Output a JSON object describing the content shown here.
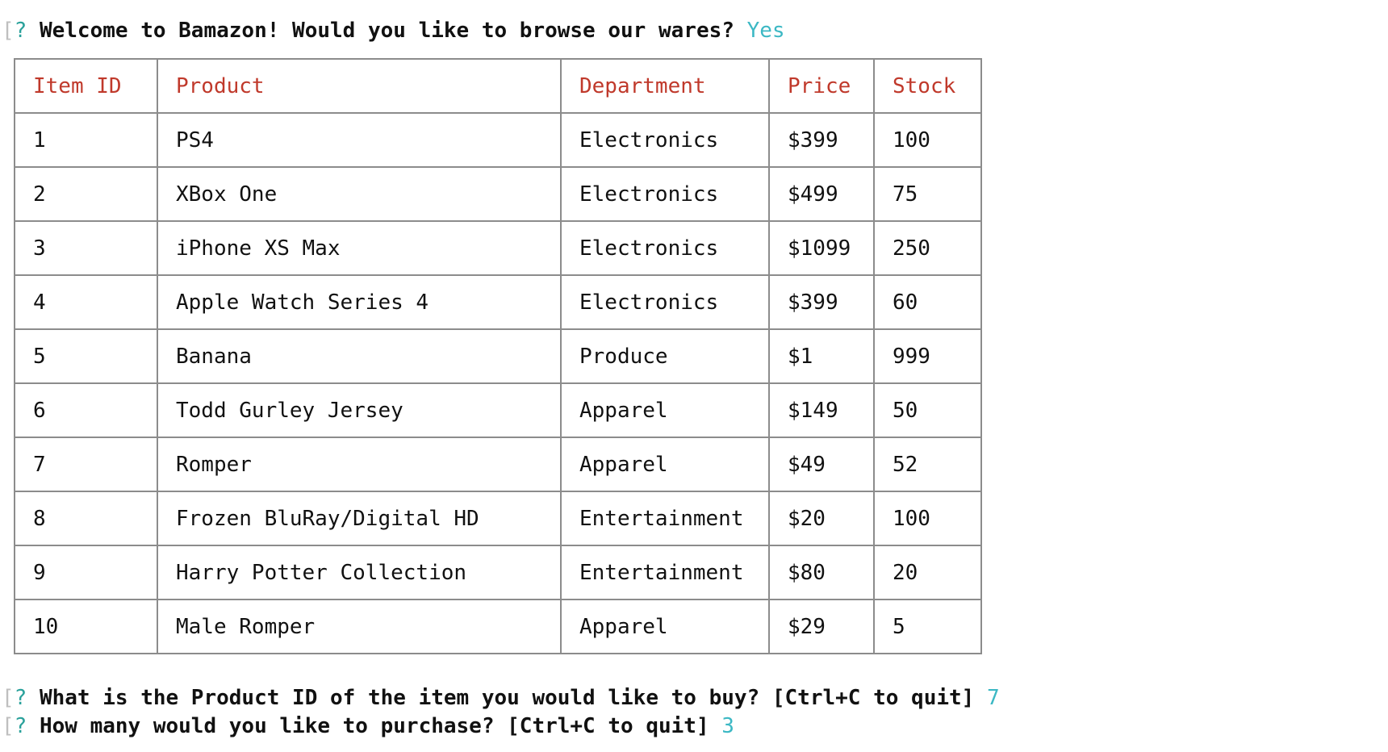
{
  "prompts": {
    "welcome": {
      "bracket": "[",
      "mark": "?",
      "question": "Welcome to Bamazon! Would you like to browse our wares?",
      "answer": "Yes"
    },
    "product_id": {
      "bracket": "[",
      "mark": "?",
      "question": "What is the Product ID of the item you would like to buy? [Ctrl+C to quit]",
      "answer": "7"
    },
    "quantity": {
      "bracket": "[",
      "mark": "?",
      "question": "How many would you like to purchase? [Ctrl+C to quit]",
      "answer": "3"
    }
  },
  "table": {
    "headers": [
      "Item ID",
      "Product",
      "Department",
      "Price",
      "Stock"
    ],
    "rows": [
      [
        "1",
        "PS4",
        "Electronics",
        "$399",
        "100"
      ],
      [
        "2",
        "XBox One",
        "Electronics",
        "$499",
        "75"
      ],
      [
        "3",
        "iPhone XS Max",
        "Electronics",
        "$1099",
        "250"
      ],
      [
        "4",
        "Apple Watch Series 4",
        "Electronics",
        "$399",
        "60"
      ],
      [
        "5",
        "Banana",
        "Produce",
        "$1",
        "999"
      ],
      [
        "6",
        "Todd Gurley Jersey",
        "Apparel",
        "$149",
        "50"
      ],
      [
        "7",
        "Romper",
        "Apparel",
        "$49",
        "52"
      ],
      [
        "8",
        "Frozen BluRay/Digital HD",
        "Entertainment",
        "$20",
        "100"
      ],
      [
        "9",
        "Harry Potter Collection",
        "Entertainment",
        "$80",
        "20"
      ],
      [
        "10",
        "Male Romper",
        "Apparel",
        "$29",
        "5"
      ]
    ]
  },
  "colors": {
    "header_text": "#c0392b",
    "answer_text": "#3cb8c4",
    "prompt_mark": "#2aa19b",
    "border": "#8c8c8c"
  }
}
